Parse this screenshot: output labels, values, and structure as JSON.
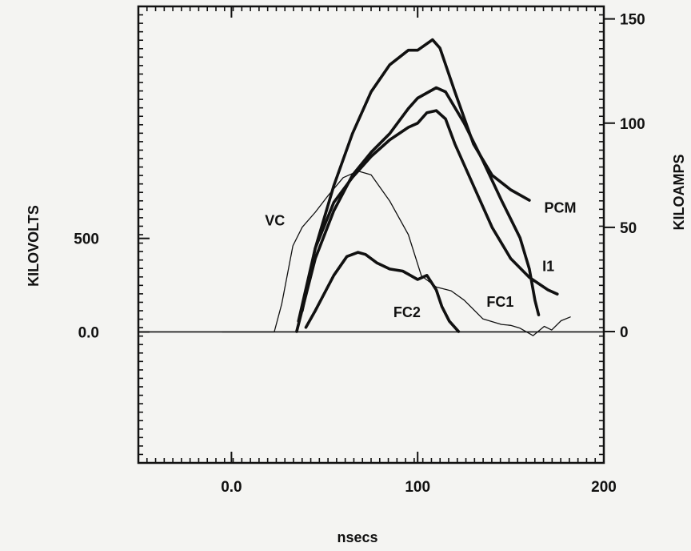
{
  "chart_data": {
    "type": "line",
    "xlabel": "nsecs",
    "ylabel_left": "KILOVOLTS",
    "ylabel_right": "KILOAMPS",
    "xlim": [
      -50,
      200
    ],
    "ylim_left": [
      -700,
      1740
    ],
    "ylim_right": [
      -63,
      156
    ],
    "x_ticks": [
      {
        "value": 0,
        "label": "0.0"
      },
      {
        "value": 100,
        "label": "100"
      },
      {
        "value": 200,
        "label": "200"
      }
    ],
    "y_ticks_left": [
      {
        "value": 0,
        "label": "0.0"
      },
      {
        "value": 500,
        "label": "500"
      }
    ],
    "y_ticks_right": [
      {
        "value": 0,
        "label": "0"
      },
      {
        "value": 50,
        "label": "50"
      },
      {
        "value": 100,
        "label": "100"
      },
      {
        "value": 150,
        "label": "150"
      }
    ],
    "grid": false,
    "series": [
      {
        "name": "VC",
        "axis": "left",
        "stroke": "thin",
        "label": "VC",
        "label_at": [
          18,
          570
        ],
        "x": [
          -5,
          23,
          27,
          33,
          38,
          45,
          52,
          60,
          68,
          75,
          85,
          95,
          102,
          110,
          118,
          125,
          135,
          145,
          150,
          155,
          162,
          168,
          172,
          177,
          182
        ],
        "y": [
          0,
          0,
          150,
          460,
          560,
          640,
          730,
          825,
          860,
          840,
          700,
          520,
          300,
          240,
          220,
          170,
          70,
          40,
          35,
          20,
          -20,
          30,
          10,
          60,
          80
        ]
      },
      {
        "name": "PCM",
        "axis": "right",
        "stroke": "thick",
        "label": "PCM",
        "label_at": [
          168,
          57
        ],
        "x": [
          38,
          45,
          55,
          65,
          75,
          85,
          95,
          100,
          108,
          112,
          120,
          130,
          140,
          150,
          160
        ],
        "y": [
          10,
          40,
          70,
          95,
          115,
          128,
          135,
          135,
          140,
          136,
          115,
          90,
          75,
          68,
          63
        ]
      },
      {
        "name": "I1",
        "axis": "right",
        "stroke": "thick",
        "label": "I1",
        "label_at": [
          167,
          29
        ],
        "x": [
          35,
          45,
          55,
          65,
          75,
          85,
          95,
          100,
          110,
          115,
          125,
          135,
          145,
          155,
          160,
          163,
          165
        ],
        "y": [
          0,
          35,
          58,
          75,
          86,
          95,
          107,
          112,
          117,
          115,
          100,
          82,
          63,
          45,
          30,
          15,
          8
        ]
      },
      {
        "name": "FC1",
        "axis": "right",
        "stroke": "thick",
        "label": "FC1",
        "label_at": [
          137,
          12
        ],
        "x": [
          36,
          45,
          55,
          65,
          75,
          85,
          95,
          100,
          105,
          110,
          115,
          120,
          130,
          140,
          150,
          160,
          170,
          175
        ],
        "y": [
          5,
          40,
          62,
          74,
          84,
          92,
          98,
          100,
          105,
          106,
          102,
          90,
          70,
          50,
          35,
          26,
          20,
          18
        ]
      },
      {
        "name": "FC2",
        "axis": "right",
        "stroke": "thick",
        "label": "FC2",
        "label_at": [
          87,
          7
        ],
        "x": [
          40,
          45,
          55,
          62,
          68,
          72,
          78,
          85,
          92,
          100,
          105,
          110,
          113,
          117,
          122
        ],
        "y": [
          2,
          10,
          27,
          36,
          38,
          37,
          33,
          30,
          29,
          25,
          27,
          20,
          12,
          5,
          0
        ]
      }
    ]
  }
}
